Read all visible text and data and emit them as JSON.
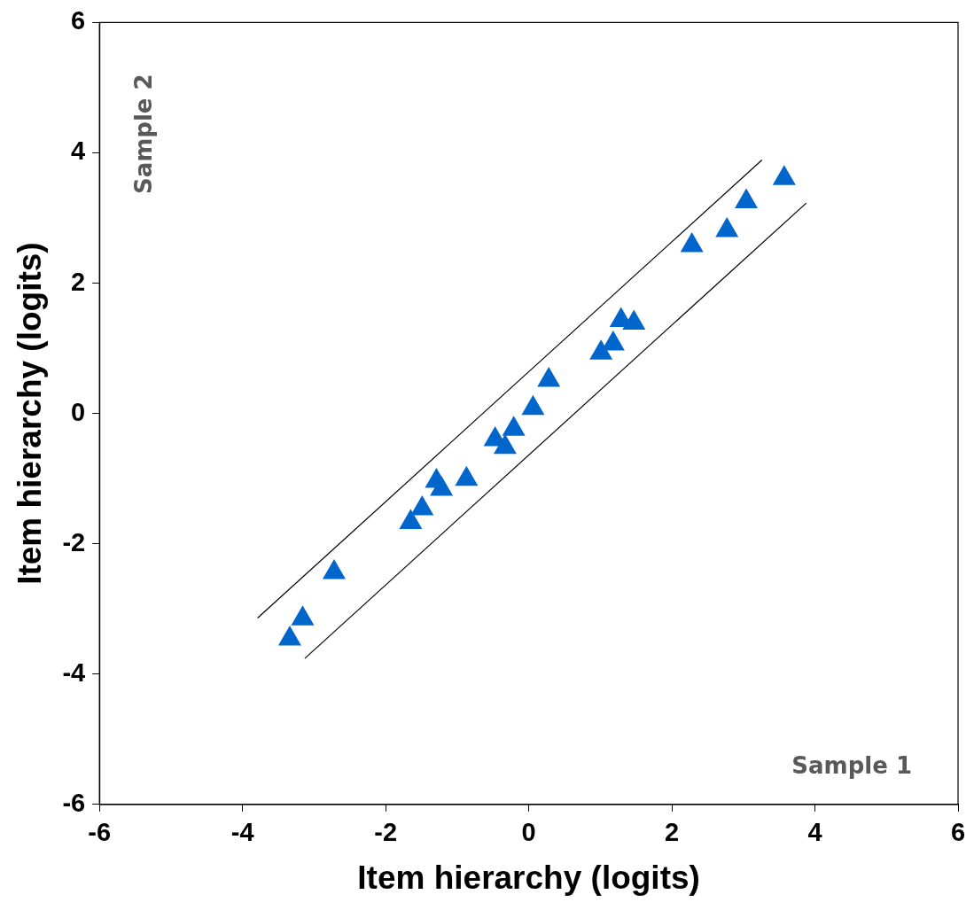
{
  "chart_data": {
    "type": "scatter",
    "xlabel": "Item hierarchy (logits)",
    "ylabel": "Item hierarchy (logits)",
    "xlim": [
      -6,
      6
    ],
    "ylim": [
      -6,
      6
    ],
    "xticks": [
      -6,
      -4,
      -2,
      0,
      2,
      4,
      6
    ],
    "yticks": [
      -6,
      -4,
      -2,
      0,
      2,
      4,
      6
    ],
    "grid": false,
    "legend": false,
    "marker": "triangle",
    "annotations": [
      "Sample 2",
      "Sample 1"
    ],
    "series": [
      {
        "color": "#0066cc",
        "x": [
          -3.34,
          -3.16,
          -2.72,
          -1.65,
          -1.49,
          -1.29,
          -1.22,
          -0.87,
          -0.47,
          -0.33,
          -0.21,
          0.06,
          0.28,
          1.01,
          1.18,
          1.29,
          1.47,
          2.28,
          2.77,
          3.04,
          3.57
        ],
        "values": [
          -3.46,
          -3.15,
          -2.44,
          -1.67,
          -1.46,
          -1.04,
          -1.16,
          -1.01,
          -0.4,
          -0.52,
          -0.24,
          0.08,
          0.51,
          0.93,
          1.07,
          1.43,
          1.39,
          2.58,
          2.81,
          3.25,
          3.61
        ]
      },
      {
        "type": "line",
        "color": "#000000",
        "marker": "none",
        "x": [
          -3.79,
          3.26
        ],
        "values": [
          -3.14,
          3.89
        ]
      },
      {
        "type": "line",
        "color": "#000000",
        "marker": "none",
        "x": [
          -3.13,
          3.88
        ],
        "values": [
          -3.76,
          3.23
        ]
      }
    ]
  }
}
